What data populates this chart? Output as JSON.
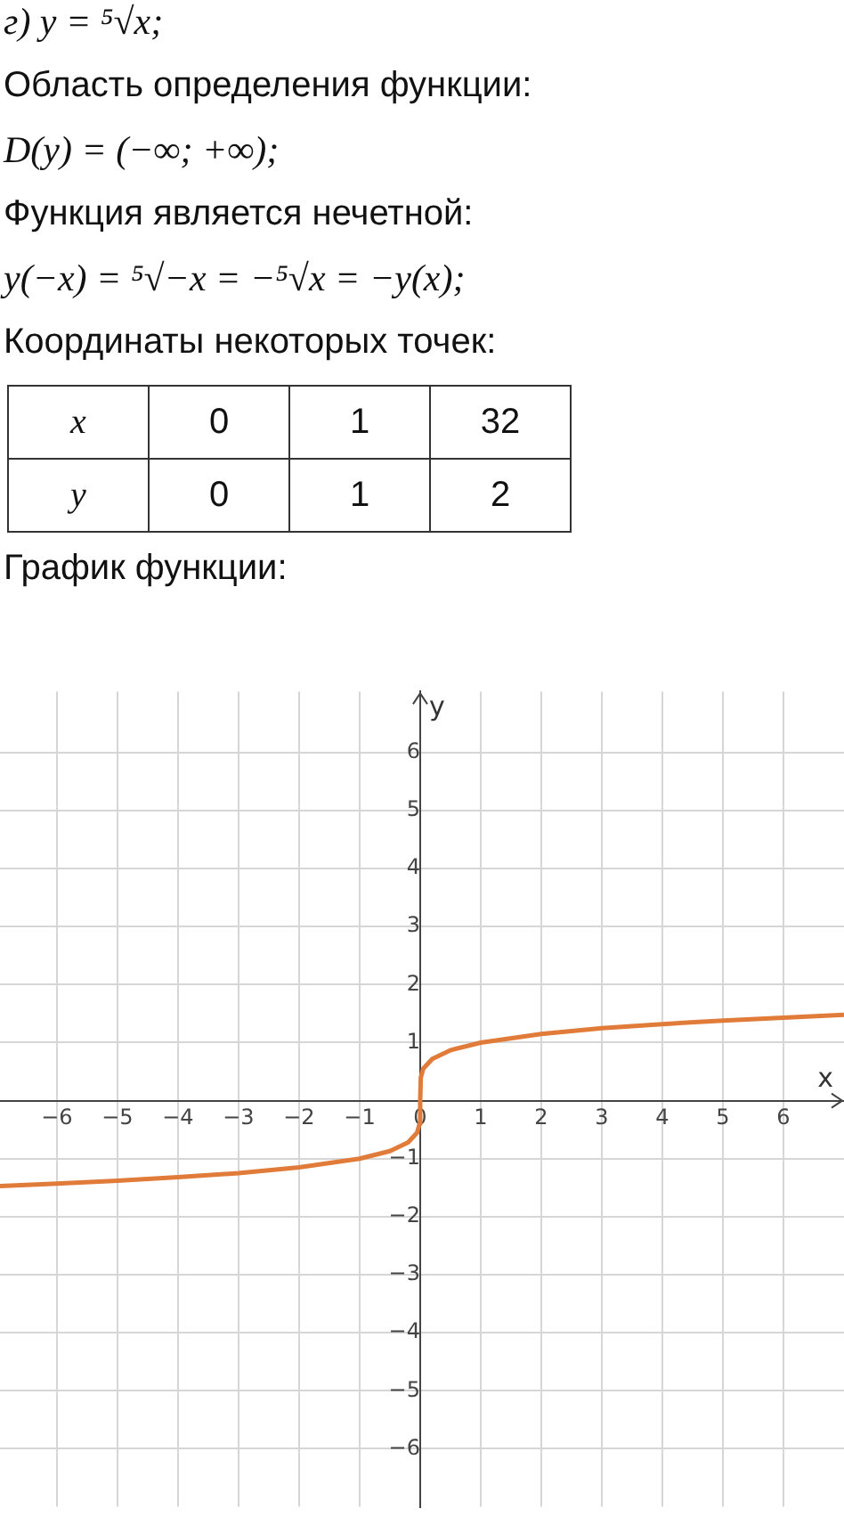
{
  "chart_data": {
    "type": "line",
    "title": "г) y = ⁵√x;",
    "annotations": [
      "Область определения функции:",
      "D(y) = (−∞; +∞);",
      "Функция является нечетной:",
      "y(−x) = ⁵√−x = −⁵√x = −y(x);",
      "Координаты некоторых точек:",
      "x",
      "0",
      "1",
      "32",
      "y",
      "0",
      "1",
      "2",
      "График функции:"
    ],
    "xlabel": "x",
    "ylabel": "y",
    "x": [
      -6.94,
      -6,
      -5,
      -4,
      -3,
      -2,
      -1,
      -0.5,
      -0.2,
      -0.05,
      -0.01,
      0,
      0.01,
      0.05,
      0.2,
      0.5,
      1,
      2,
      3,
      4,
      5,
      6,
      7
    ],
    "series": [
      {
        "color": "#e07b39",
        "values": [
          -1.47,
          -1.43,
          -1.38,
          -1.32,
          -1.25,
          -1.15,
          -1,
          -0.87,
          -0.72,
          -0.55,
          -0.4,
          0,
          0.4,
          0.55,
          0.72,
          0.87,
          1,
          1.15,
          1.25,
          1.32,
          1.38,
          1.43,
          1.48
        ]
      }
    ],
    "xlim": [
      -6.94,
      7
    ],
    "ylim": [
      -7,
      7.05
    ],
    "xticks": [
      -6,
      -5,
      -4,
      -3,
      -2,
      -1,
      0,
      1,
      2,
      3,
      4,
      5,
      6
    ],
    "yticks": [
      -6,
      -5,
      -4,
      -3,
      -2,
      -1,
      {
        "value": 0,
        "label": null
      },
      1,
      2,
      3,
      4,
      5,
      6
    ],
    "grid": true,
    "marker": "none",
    "line_style": "solid"
  }
}
